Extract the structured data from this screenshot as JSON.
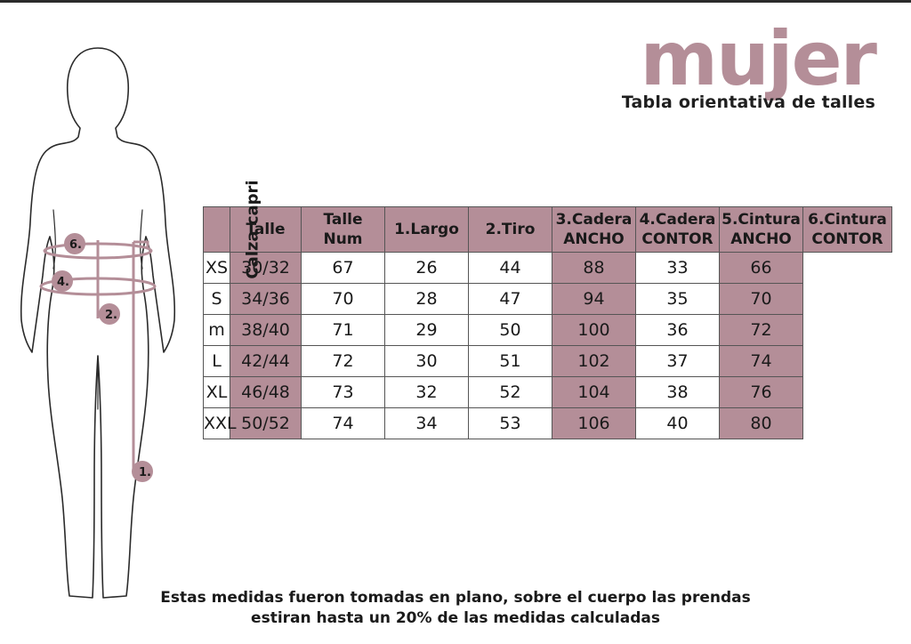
{
  "title": "mujer",
  "subtitle": "Tabla orientativa de talles",
  "figure": {
    "markers": [
      {
        "label": "6."
      },
      {
        "label": "4."
      },
      {
        "label": "2."
      },
      {
        "label": "1."
      }
    ]
  },
  "table": {
    "side_label": "Calza capri",
    "headers": [
      [
        "Talle"
      ],
      [
        "Talle",
        "Num"
      ],
      [
        "1.Largo"
      ],
      [
        "2.Tiro"
      ],
      [
        "3.Cadera",
        "ANCHO"
      ],
      [
        "4.Cadera",
        "CONTOR"
      ],
      [
        "5.Cintura",
        "ANCHO"
      ],
      [
        "6.Cintura",
        "CONTOR"
      ]
    ],
    "rows": [
      [
        "XS",
        "30/32",
        "67",
        "26",
        "44",
        "88",
        "33",
        "66"
      ],
      [
        "S",
        "34/36",
        "70",
        "28",
        "47",
        "94",
        "35",
        "70"
      ],
      [
        "m",
        "38/40",
        "71",
        "29",
        "50",
        "100",
        "36",
        "72"
      ],
      [
        "L",
        "42/44",
        "72",
        "30",
        "51",
        "102",
        "37",
        "74"
      ],
      [
        "XL",
        "46/48",
        "73",
        "32",
        "52",
        "104",
        "38",
        "76"
      ],
      [
        "XXL",
        "50/52",
        "74",
        "34",
        "53",
        "106",
        "40",
        "80"
      ]
    ]
  },
  "note": {
    "line1": "Estas medidas fueron tomadas en plano, sobre el cuerpo las prendas",
    "line2": "estiran hasta un 20% de las medidas calculadas"
  },
  "colors": {
    "accent": "#b48e98",
    "text": "#1a1a1a",
    "outline": "#2b2b2b"
  }
}
